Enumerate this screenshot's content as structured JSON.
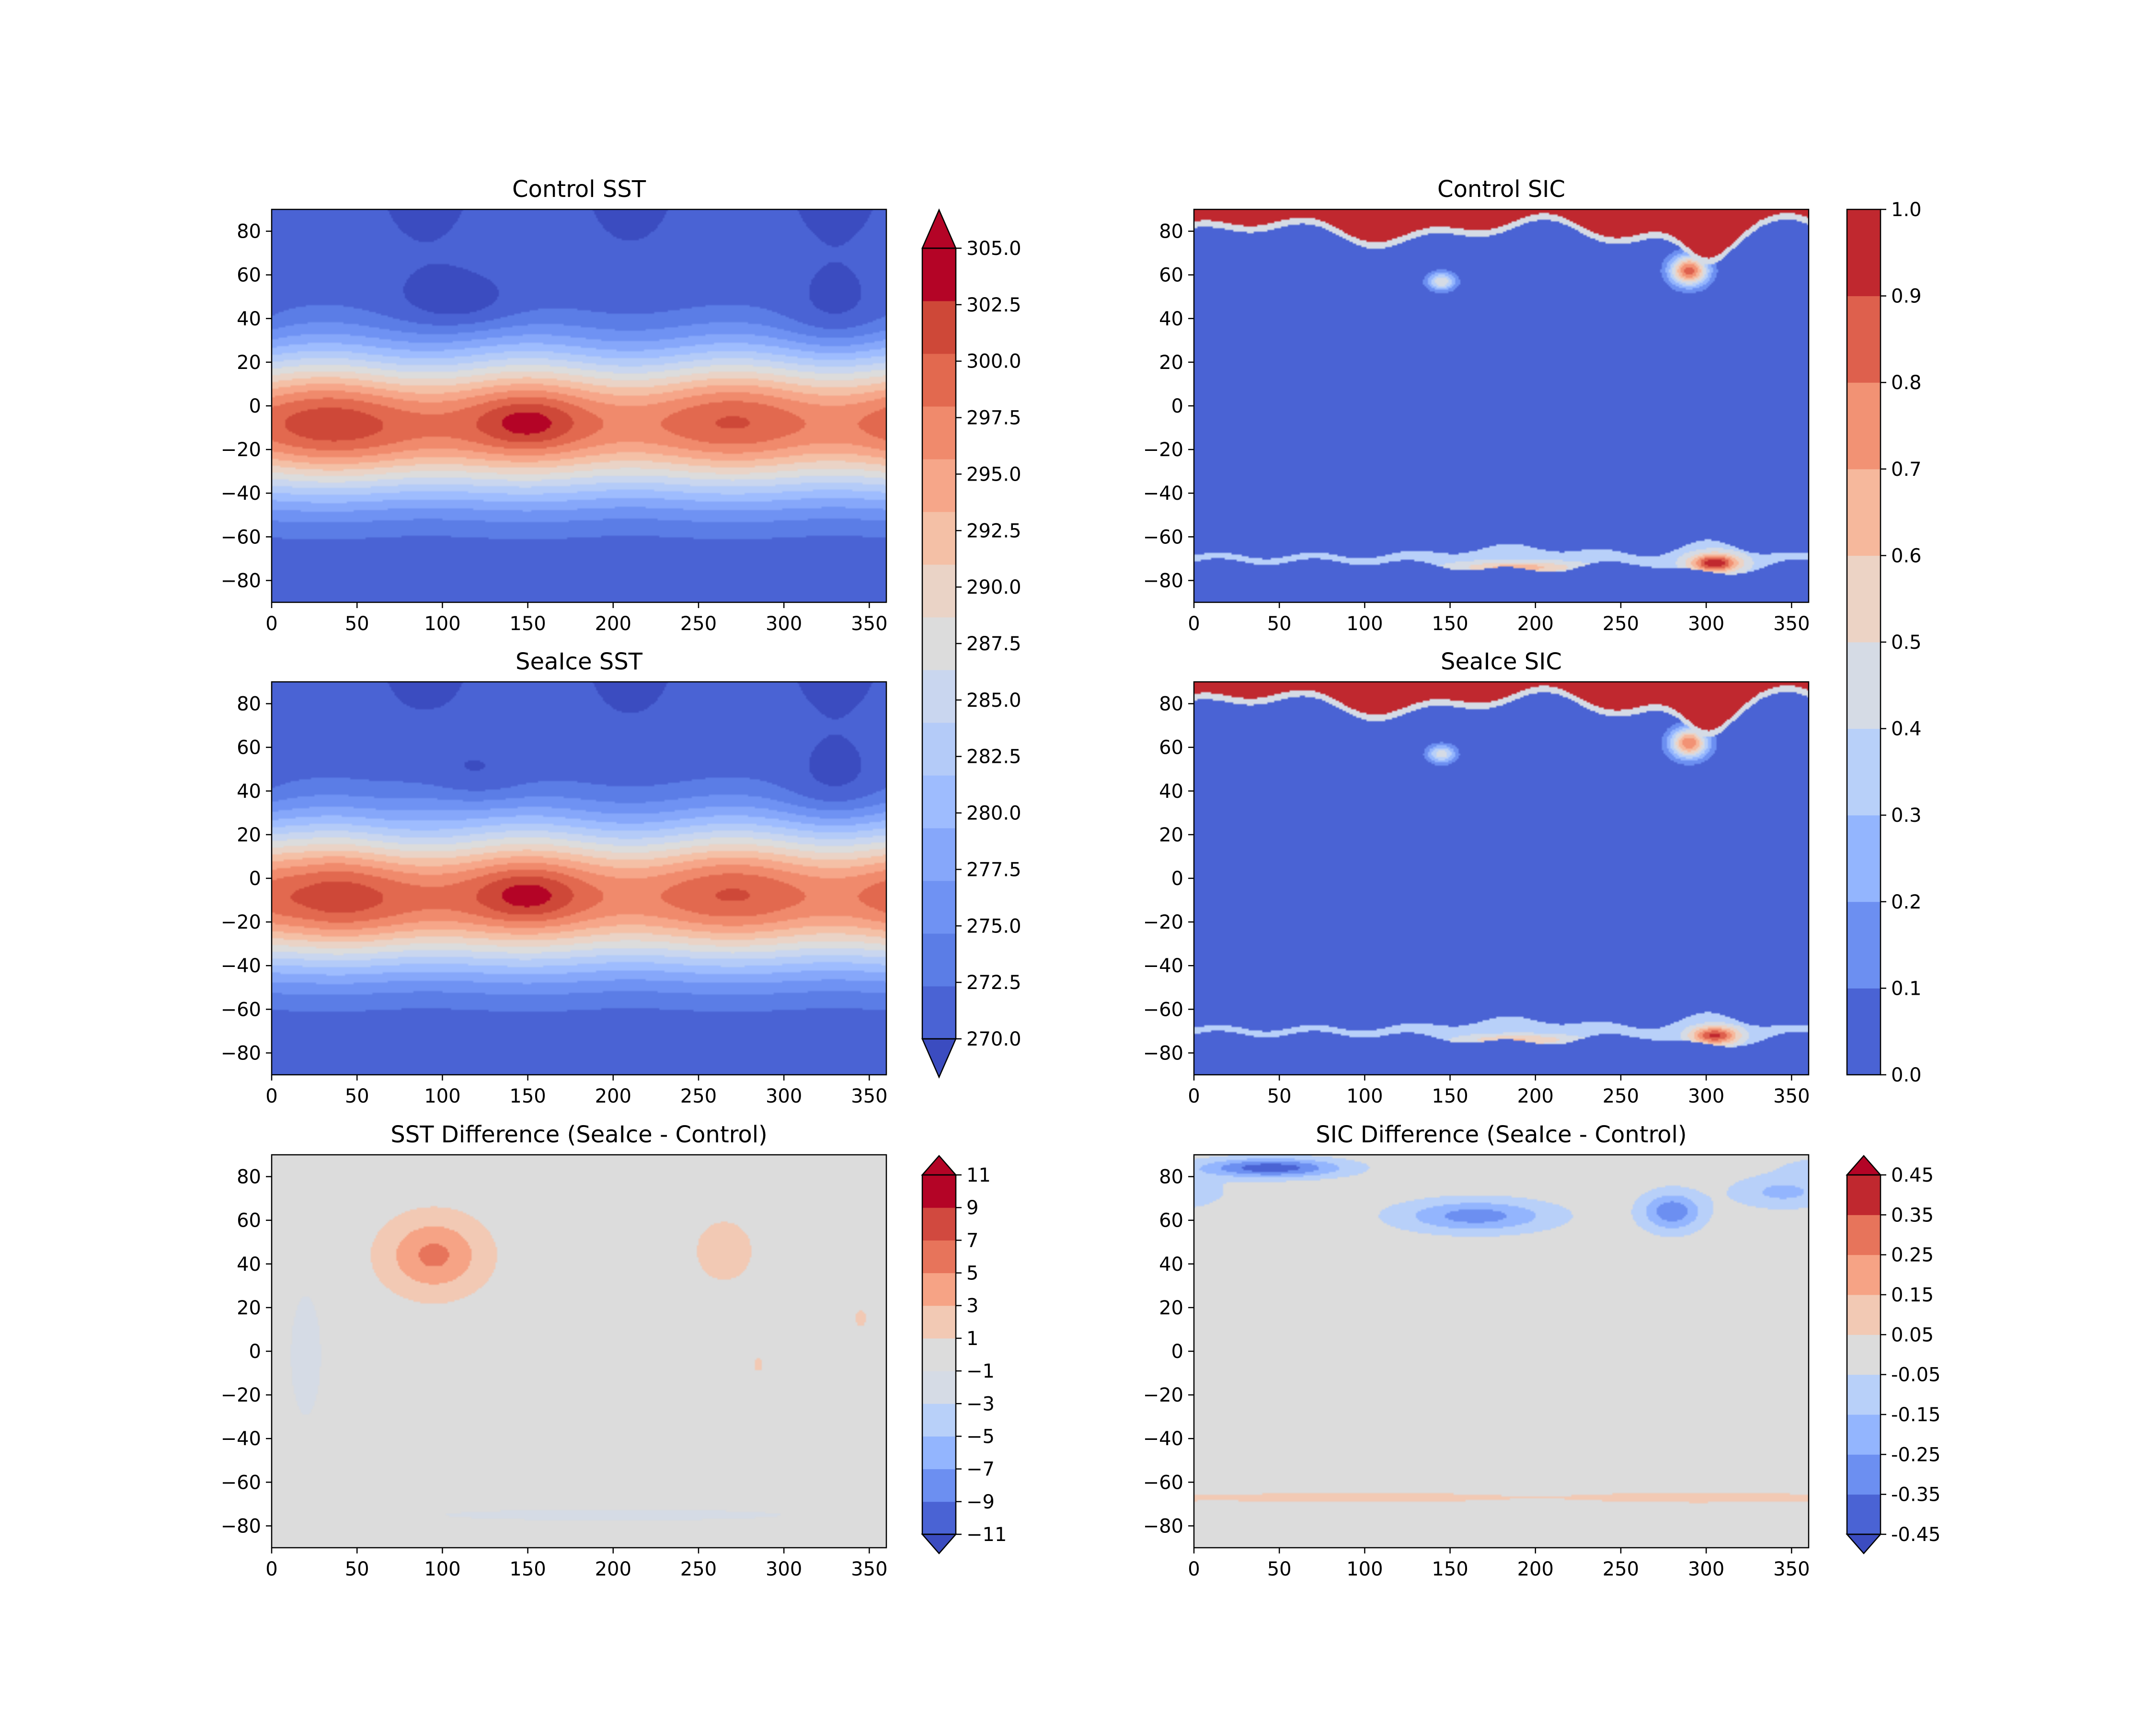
{
  "chart_data": [
    {
      "type": "heatmap",
      "id": "control-sst",
      "title": "Control SST",
      "xlim": [
        0,
        360
      ],
      "ylim": [
        -90,
        90
      ],
      "xticks": [
        0,
        50,
        100,
        150,
        200,
        250,
        300,
        350
      ],
      "yticks": [
        -80,
        -60,
        -40,
        -20,
        0,
        20,
        40,
        60,
        80
      ],
      "xlabel": "",
      "ylabel": "",
      "field": "sst",
      "variant": "control"
    },
    {
      "type": "heatmap",
      "id": "control-sic",
      "title": "Control SIC",
      "xlim": [
        0,
        360
      ],
      "ylim": [
        -90,
        90
      ],
      "xticks": [
        0,
        50,
        100,
        150,
        200,
        250,
        300,
        350
      ],
      "yticks": [
        -80,
        -60,
        -40,
        -20,
        0,
        20,
        40,
        60,
        80
      ],
      "xlabel": "",
      "ylabel": "",
      "field": "sic",
      "variant": "control"
    },
    {
      "type": "heatmap",
      "id": "seaice-sst",
      "title": "SeaIce SST",
      "xlim": [
        0,
        360
      ],
      "ylim": [
        -90,
        90
      ],
      "xticks": [
        0,
        50,
        100,
        150,
        200,
        250,
        300,
        350
      ],
      "yticks": [
        -80,
        -60,
        -40,
        -20,
        0,
        20,
        40,
        60,
        80
      ],
      "xlabel": "",
      "ylabel": "",
      "field": "sst",
      "variant": "seaice"
    },
    {
      "type": "heatmap",
      "id": "seaice-sic",
      "title": "SeaIce SIC",
      "xlim": [
        0,
        360
      ],
      "ylim": [
        -90,
        90
      ],
      "xticks": [
        0,
        50,
        100,
        150,
        200,
        250,
        300,
        350
      ],
      "yticks": [
        -80,
        -60,
        -40,
        -20,
        0,
        20,
        40,
        60,
        80
      ],
      "xlabel": "",
      "ylabel": "",
      "field": "sic",
      "variant": "seaice"
    },
    {
      "type": "heatmap",
      "id": "sst-difference",
      "title": "SST Difference (SeaIce - Control)",
      "xlim": [
        0,
        360
      ],
      "ylim": [
        -90,
        90
      ],
      "xticks": [
        0,
        50,
        100,
        150,
        200,
        250,
        300,
        350
      ],
      "yticks": [
        -80,
        -60,
        -40,
        -20,
        0,
        20,
        40,
        60,
        80
      ],
      "xlabel": "",
      "ylabel": "",
      "field": "sstdiff",
      "variant": "diff"
    },
    {
      "type": "heatmap",
      "id": "sic-difference",
      "title": "SIC Difference (SeaIce - Control)",
      "xlim": [
        0,
        360
      ],
      "ylim": [
        -90,
        90
      ],
      "xticks": [
        0,
        50,
        100,
        150,
        200,
        250,
        300,
        350
      ],
      "yticks": [
        -80,
        -60,
        -40,
        -20,
        0,
        20,
        40,
        60,
        80
      ],
      "xlabel": "",
      "ylabel": "",
      "field": "sicdiff",
      "variant": "diff"
    }
  ],
  "colorbars": [
    {
      "id": "sst-colorbar",
      "levels": [
        270.0,
        272.5,
        275.0,
        277.5,
        280.0,
        282.5,
        285.0,
        287.5,
        290.0,
        292.5,
        295.0,
        297.5,
        300.0,
        302.5,
        305.0
      ],
      "tick_labels": [
        "270.0",
        "272.5",
        "275.0",
        "277.5",
        "280.0",
        "282.5",
        "285.0",
        "287.5",
        "290.0",
        "292.5",
        "295.0",
        "297.5",
        "300.0",
        "302.5",
        "305.0"
      ],
      "extend": "both",
      "colors": [
        "#4a63d4",
        "#5b7de6",
        "#6f92f3",
        "#86a7fa",
        "#9ebcfe",
        "#b4cbf8",
        "#c9d6ef",
        "#dcdcdc",
        "#ead3c6",
        "#f4c0a6",
        "#f6a689",
        "#f08a6c",
        "#e2694f",
        "#ce4838",
        "#b40426"
      ],
      "under_color": "#3b4cc0",
      "over_color": "#b40426"
    },
    {
      "id": "sic-colorbar",
      "levels": [
        0.0,
        0.1,
        0.2,
        0.3,
        0.4,
        0.5,
        0.6,
        0.7,
        0.8,
        0.9,
        1.0
      ],
      "tick_labels": [
        "0.0",
        "0.1",
        "0.2",
        "0.3",
        "0.4",
        "0.5",
        "0.6",
        "0.7",
        "0.8",
        "0.9",
        "1.0"
      ],
      "extend": "neither",
      "colors": [
        "#4a63d4",
        "#6c8ff1",
        "#93b5fe",
        "#b8d0f9",
        "#d5dbe5",
        "#ecd3c5",
        "#f6b89c",
        "#f29274",
        "#de604d",
        "#c0282f"
      ]
    },
    {
      "id": "sst-diff-colorbar",
      "levels": [
        -11,
        -9,
        -7,
        -5,
        -3,
        -1,
        1,
        3,
        5,
        7,
        9,
        11
      ],
      "tick_labels": [
        "−11",
        "−9",
        "−7",
        "−5",
        "−3",
        "−1",
        "1",
        "3",
        "5",
        "7",
        "9",
        "11"
      ],
      "extend": "both",
      "colors": [
        "#4a63d4",
        "#6c8ff1",
        "#93b5fe",
        "#b8d0f9",
        "#d5dbe5",
        "#dcdcdc",
        "#f2c9b4",
        "#f6a385",
        "#e7745b",
        "#d1493f",
        "#b40426"
      ],
      "under_color": "#3b4cc0",
      "over_color": "#b40426"
    },
    {
      "id": "sic-diff-colorbar",
      "levels": [
        -0.45,
        -0.35,
        -0.25,
        -0.15,
        -0.05,
        0.05,
        0.15,
        0.25,
        0.35,
        0.45
      ],
      "tick_labels": [
        "-0.45",
        "-0.35",
        "-0.25",
        "-0.15",
        "-0.05",
        "0.05",
        "0.15",
        "0.25",
        "0.35",
        "0.45"
      ],
      "extend": "both",
      "colors": [
        "#4a63d4",
        "#6c8ff1",
        "#93b5fe",
        "#b8d0f9",
        "#dcdcdc",
        "#f2c9b4",
        "#f6a385",
        "#e7745b",
        "#c0282f"
      ],
      "under_color": "#3b4cc0",
      "over_color": "#b40426"
    }
  ]
}
